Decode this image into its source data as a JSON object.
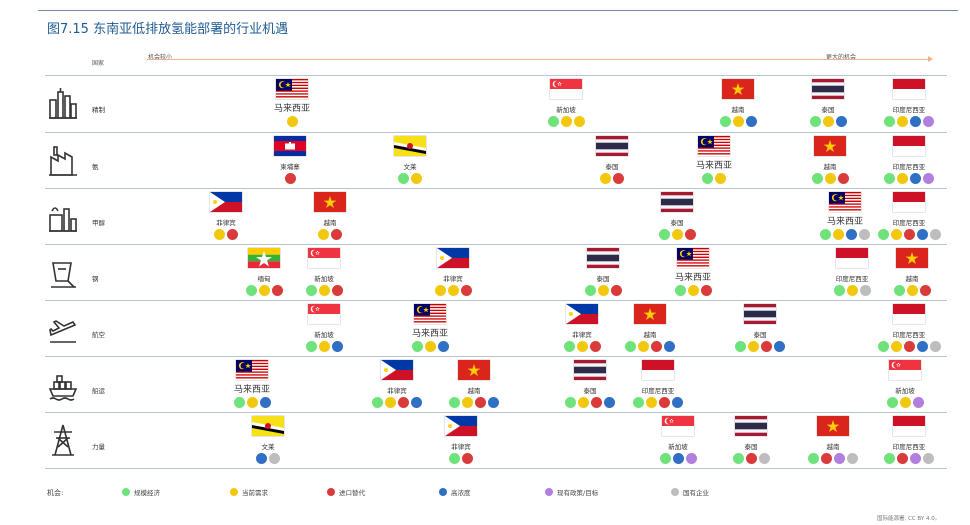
{
  "title": "图7.15 东南亚低排放氢能部署的行业机遇",
  "header": {
    "country": "国家",
    "low": "机会较小",
    "high": "更大的机会"
  },
  "colors": {
    "规模经济": "#6ee37c",
    "当前需求": "#f2c80f",
    "进口替代": "#d93a3a",
    "高浓度": "#2f6fc4",
    "现有政策/目标": "#b07fe0",
    "国有企业": "#bdbdbd",
    "axis": "#f4b08a",
    "divider": "#b5c4d6",
    "title": "#1f5b93"
  },
  "legend": {
    "title": "机会:",
    "items": [
      {
        "label": "规模经济",
        "color": "#6ee37c"
      },
      {
        "label": "当前需求",
        "color": "#f2c80f"
      },
      {
        "label": "进口替代",
        "color": "#d93a3a"
      },
      {
        "label": "高浓度",
        "color": "#2f6fc4"
      },
      {
        "label": "现有政策/目标",
        "color": "#b07fe0"
      },
      {
        "label": "国有企业",
        "color": "#bdbdbd"
      }
    ]
  },
  "chart_data": {
    "type": "scatter",
    "x_axis": "机会（较小 → 更大）",
    "rows": [
      {
        "sector": "精制",
        "icon": "refinery-icon",
        "entries": [
          {
            "country": "马来西亚",
            "flag": "malaysia",
            "dots": [
              "当前需求"
            ]
          },
          {
            "country": "新加坡",
            "flag": "singapore",
            "dots": [
              "规模经济",
              "当前需求",
              "当前需求"
            ]
          },
          {
            "country": "越南",
            "flag": "vietnam",
            "dots": [
              "规模经济",
              "当前需求",
              "高浓度"
            ]
          },
          {
            "country": "泰国",
            "flag": "thailand",
            "dots": [
              "规模经济",
              "当前需求",
              "高浓度"
            ]
          },
          {
            "country": "印度尼西亚",
            "flag": "indonesia",
            "dots": [
              "规模经济",
              "当前需求",
              "高浓度",
              "现有政策/目标"
            ]
          }
        ]
      },
      {
        "sector": "氨",
        "icon": "ammonia-plant-icon",
        "entries": [
          {
            "country": "柬埔寨",
            "flag": "cambodia",
            "dots": [
              "进口替代"
            ]
          },
          {
            "country": "文莱",
            "flag": "brunei",
            "dots": [
              "规模经济",
              "当前需求"
            ]
          },
          {
            "country": "泰国",
            "flag": "thailand",
            "dots": [
              "当前需求",
              "进口替代"
            ]
          },
          {
            "country": "马来西亚",
            "flag": "malaysia",
            "dots": [
              "规模经济",
              "当前需求"
            ]
          },
          {
            "country": "越南",
            "flag": "vietnam",
            "dots": [
              "规模经济",
              "当前需求",
              "进口替代"
            ]
          },
          {
            "country": "印度尼西亚",
            "flag": "indonesia",
            "dots": [
              "规模经济",
              "当前需求",
              "高浓度",
              "现有政策/目标"
            ]
          }
        ]
      },
      {
        "sector": "甲醇",
        "icon": "methanol-plant-icon",
        "entries": [
          {
            "country": "菲律宾",
            "flag": "philippines",
            "dots": [
              "当前需求",
              "进口替代"
            ]
          },
          {
            "country": "越南",
            "flag": "vietnam",
            "dots": [
              "当前需求",
              "进口替代"
            ]
          },
          {
            "country": "泰国",
            "flag": "thailand",
            "dots": [
              "规模经济",
              "当前需求",
              "进口替代"
            ]
          },
          {
            "country": "马来西亚",
            "flag": "malaysia",
            "dots": [
              "规模经济",
              "当前需求",
              "高浓度",
              "国有企业"
            ]
          },
          {
            "country": "印度尼西亚",
            "flag": "indonesia",
            "dots": [
              "规模经济",
              "当前需求",
              "进口替代",
              "高浓度",
              "国有企业"
            ]
          }
        ]
      },
      {
        "sector": "钢",
        "icon": "steel-ladle-icon",
        "entries": [
          {
            "country": "缅甸",
            "flag": "myanmar",
            "dots": [
              "规模经济",
              "当前需求",
              "进口替代"
            ]
          },
          {
            "country": "新加坡",
            "flag": "singapore",
            "dots": [
              "规模经济",
              "当前需求",
              "进口替代"
            ]
          },
          {
            "country": "菲律宾",
            "flag": "philippines",
            "dots": [
              "当前需求",
              "当前需求",
              "进口替代"
            ]
          },
          {
            "country": "泰国",
            "flag": "thailand",
            "dots": [
              "规模经济",
              "当前需求",
              "进口替代"
            ]
          },
          {
            "country": "马来西亚",
            "flag": "malaysia",
            "dots": [
              "规模经济",
              "当前需求",
              "进口替代"
            ]
          },
          {
            "country": "印度尼西亚",
            "flag": "indonesia",
            "dots": [
              "规模经济",
              "当前需求",
              "国有企业"
            ]
          },
          {
            "country": "越南",
            "flag": "vietnam",
            "dots": [
              "规模经济",
              "当前需求",
              "进口替代"
            ]
          }
        ]
      },
      {
        "sector": "航空",
        "icon": "aviation-icon",
        "entries": [
          {
            "country": "新加坡",
            "flag": "singapore",
            "dots": [
              "规模经济",
              "当前需求",
              "高浓度"
            ]
          },
          {
            "country": "马来西亚",
            "flag": "malaysia",
            "dots": [
              "规模经济",
              "当前需求",
              "高浓度"
            ]
          },
          {
            "country": "菲律宾",
            "flag": "philippines",
            "dots": [
              "规模经济",
              "当前需求",
              "进口替代"
            ]
          },
          {
            "country": "越南",
            "flag": "vietnam",
            "dots": [
              "规模经济",
              "当前需求",
              "进口替代",
              "高浓度"
            ]
          },
          {
            "country": "泰国",
            "flag": "thailand",
            "dots": [
              "规模经济",
              "当前需求",
              "进口替代",
              "高浓度"
            ]
          },
          {
            "country": "印度尼西亚",
            "flag": "indonesia",
            "dots": [
              "规模经济",
              "当前需求",
              "进口替代",
              "高浓度",
              "国有企业"
            ]
          }
        ]
      },
      {
        "sector": "船运",
        "icon": "shipping-icon",
        "entries": [
          {
            "country": "马来西亚",
            "flag": "malaysia",
            "dots": [
              "规模经济",
              "当前需求",
              "高浓度"
            ]
          },
          {
            "country": "菲律宾",
            "flag": "philippines",
            "dots": [
              "规模经济",
              "当前需求",
              "进口替代",
              "高浓度"
            ]
          },
          {
            "country": "越南",
            "flag": "vietnam",
            "dots": [
              "规模经济",
              "当前需求",
              "进口替代",
              "高浓度"
            ]
          },
          {
            "country": "泰国",
            "flag": "thailand",
            "dots": [
              "规模经济",
              "当前需求",
              "进口替代",
              "高浓度"
            ]
          },
          {
            "country": "印度尼西亚",
            "flag": "indonesia",
            "dots": [
              "规模经济",
              "当前需求",
              "进口替代",
              "高浓度"
            ]
          },
          {
            "country": "新加坡",
            "flag": "singapore",
            "dots": [
              "规模经济",
              "当前需求",
              "现有政策/目标"
            ]
          }
        ]
      },
      {
        "sector": "力量",
        "icon": "power-pylon-icon",
        "entries": [
          {
            "country": "文莱",
            "flag": "brunei",
            "dots": [
              "高浓度",
              "国有企业"
            ]
          },
          {
            "country": "菲律宾",
            "flag": "philippines",
            "dots": [
              "规模经济",
              "进口替代"
            ]
          },
          {
            "country": "新加坡",
            "flag": "singapore",
            "dots": [
              "规模经济",
              "高浓度",
              "现有政策/目标"
            ]
          },
          {
            "country": "泰国",
            "flag": "thailand",
            "dots": [
              "规模经济",
              "进口替代",
              "国有企业"
            ]
          },
          {
            "country": "越南",
            "flag": "vietnam",
            "dots": [
              "规模经济",
              "进口替代",
              "现有政策/目标",
              "国有企业"
            ]
          },
          {
            "country": "印度尼西亚",
            "flag": "indonesia",
            "dots": [
              "规模经济",
              "进口替代",
              "现有政策/目标",
              "国有企业"
            ]
          }
        ]
      }
    ]
  },
  "credit": "国际能源署, CC BY 4.0。"
}
